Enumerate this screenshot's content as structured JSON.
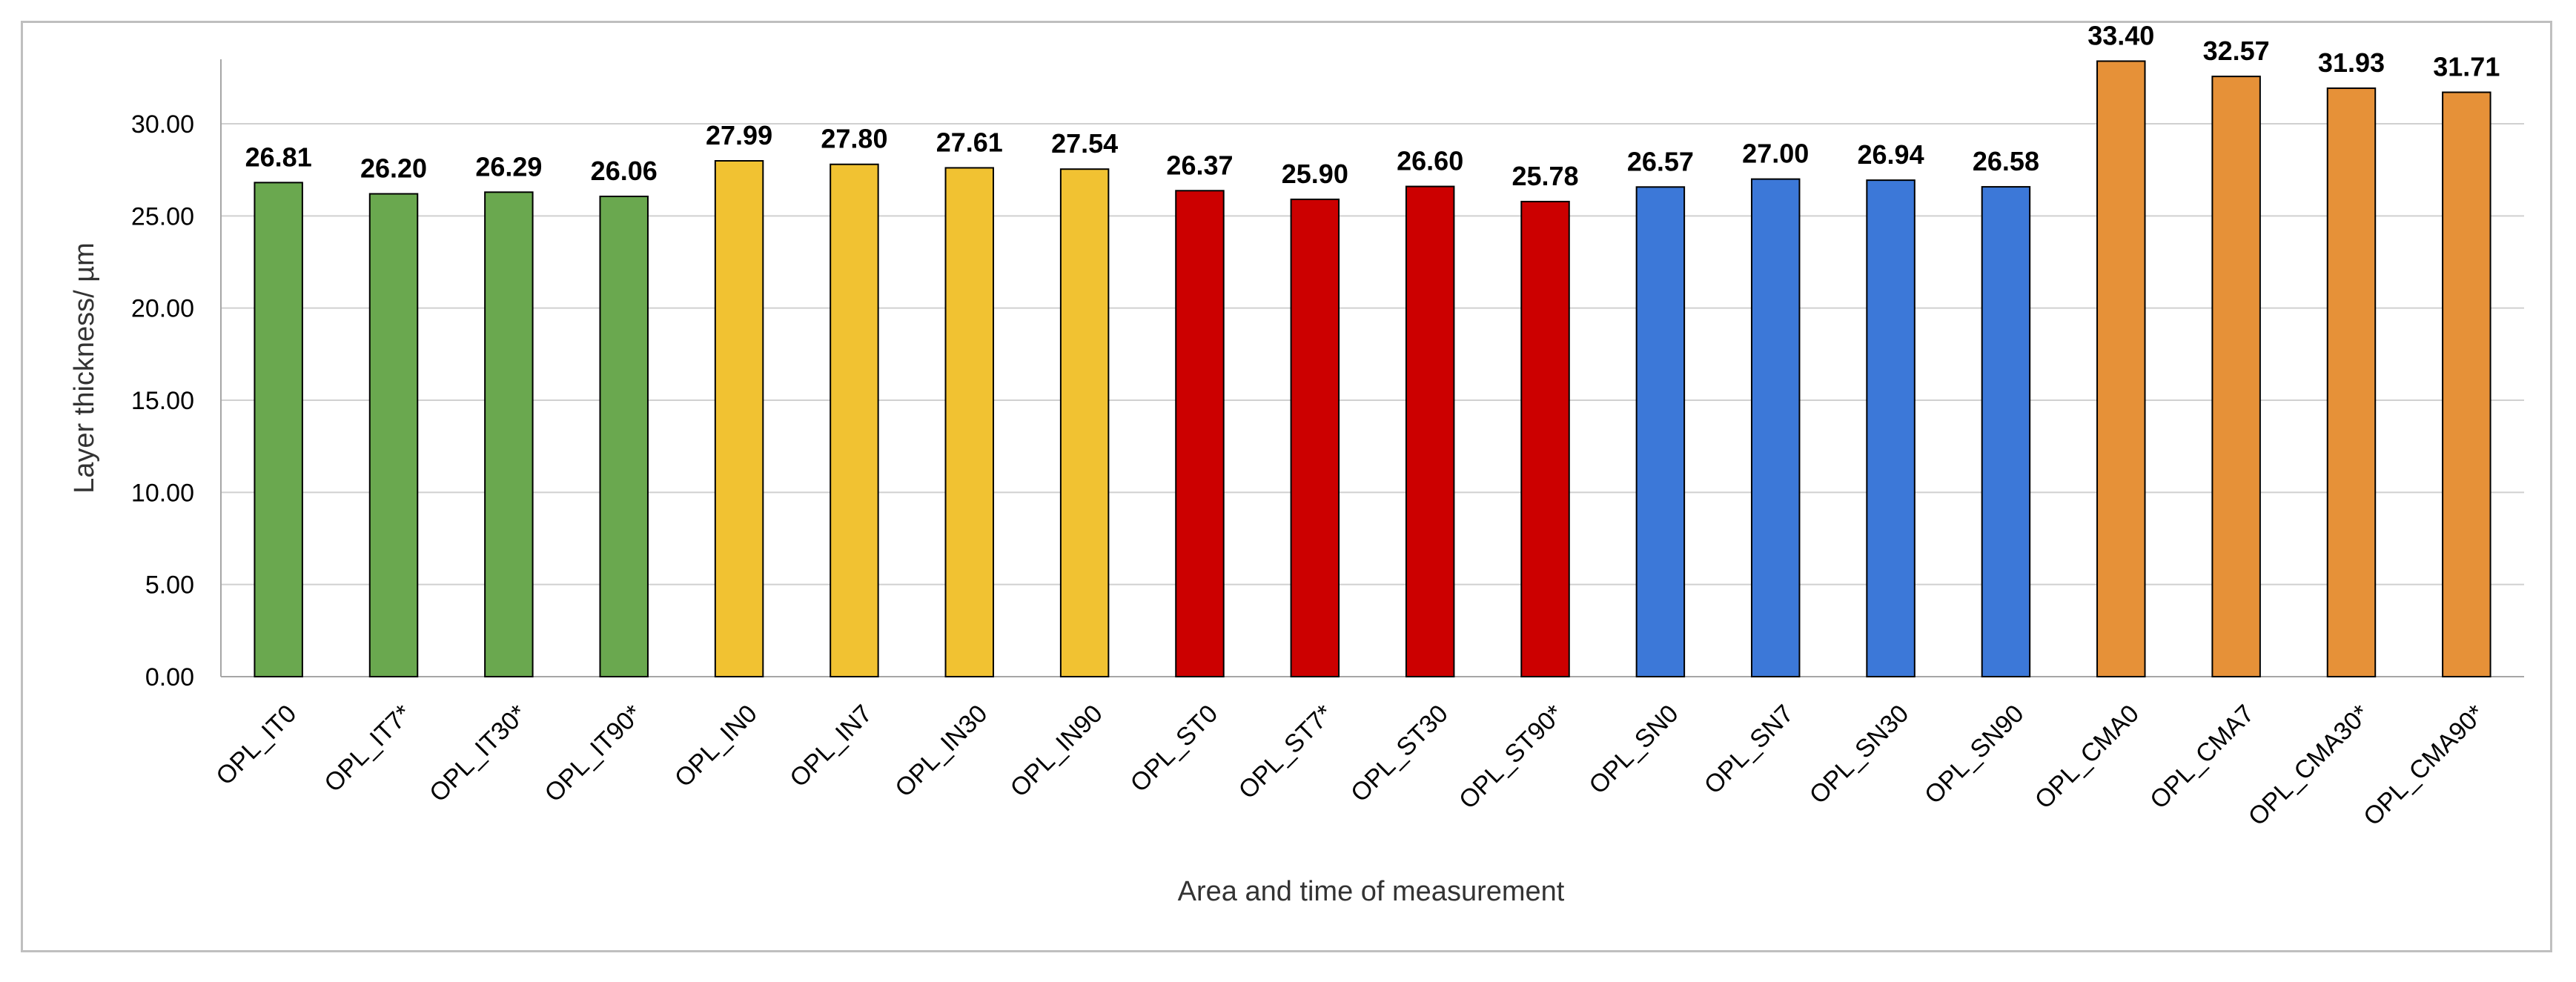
{
  "chart_data": {
    "type": "bar",
    "title": "",
    "xlabel": "Area and time of measurement",
    "ylabel": "Layer thickness/ µm",
    "ylim": [
      0,
      33.5
    ],
    "yticks": [
      0,
      5,
      10,
      15,
      20,
      25,
      30
    ],
    "ytick_labels": [
      "0.00",
      "5.00",
      "10.00",
      "15.00",
      "20.00",
      "25.00",
      "30.00"
    ],
    "grid": true,
    "legend": "none",
    "categories": [
      "OPL_IT0",
      "OPL_IT7*",
      "OPL_IT30*",
      "OPL_IT90*",
      "OPL_IN0",
      "OPL_IN7",
      "OPL_IN30",
      "OPL_IN90",
      "OPL_ST0",
      "OPL_ST7*",
      "OPL_ST30",
      "OPL_ST90*",
      "OPL_SN0",
      "OPL_SN7",
      "OPL_SN30",
      "OPL_SN90",
      "OPL_CMA0",
      "OPL_CMA7",
      "OPL_CMA30*",
      "OPL_CMA90*"
    ],
    "values": [
      26.81,
      26.2,
      26.29,
      26.06,
      27.99,
      27.8,
      27.61,
      27.54,
      26.37,
      25.9,
      26.6,
      25.78,
      26.57,
      27.0,
      26.94,
      26.58,
      33.4,
      32.57,
      31.93,
      31.71
    ],
    "value_labels": [
      "26.81",
      "26.20",
      "26.29",
      "26.06",
      "27.99",
      "27.80",
      "27.61",
      "27.54",
      "26.37",
      "25.90",
      "26.60",
      "25.78",
      "26.57",
      "27.00",
      "26.94",
      "26.58",
      "33.40",
      "32.57",
      "31.93",
      "31.71"
    ],
    "colors": [
      "#6aa84f",
      "#6aa84f",
      "#6aa84f",
      "#6aa84f",
      "#f1c232",
      "#f1c232",
      "#f1c232",
      "#f1c232",
      "#cc0000",
      "#cc0000",
      "#cc0000",
      "#cc0000",
      "#3c78d8",
      "#3c78d8",
      "#3c78d8",
      "#3c78d8",
      "#e69138",
      "#e69138",
      "#e69138",
      "#e69138"
    ],
    "grid_color": "#d0d0d0",
    "axis_color": "#a6a6a6",
    "bar_edge_color": "#000000"
  }
}
